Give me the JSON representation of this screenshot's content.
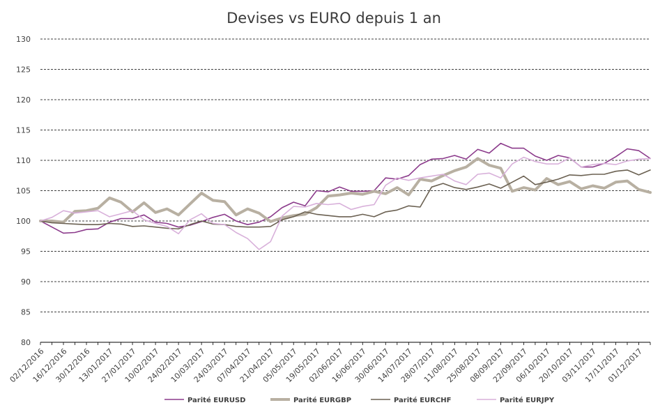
{
  "chart_data": {
    "type": "line",
    "title": "Devises vs EURO depuis 1 an",
    "ylim": [
      80,
      130
    ],
    "yticks": [
      80,
      85,
      90,
      95,
      100,
      105,
      110,
      115,
      120,
      125,
      130
    ],
    "grid": true,
    "legend_position": "bottom",
    "xtick_labels": [
      "02/12/2016",
      "16/12/2016",
      "30/12/2016",
      "13/01/2017",
      "27/01/2017",
      "10/02/2017",
      "24/02/2017",
      "10/03/2017",
      "24/03/2017",
      "07/04/2017",
      "21/04/2017",
      "05/05/2017",
      "19/05/2017",
      "02/06/2017",
      "16/06/2017",
      "30/06/2017",
      "14/07/2017",
      "28/07/2017",
      "11/08/2017",
      "25/08/2017",
      "08/09/2017",
      "22/09/2017",
      "06/10/2017",
      "20/10/2017",
      "03/11/2017",
      "17/11/2017",
      "01/12/2017"
    ],
    "x": [
      "02/12/2016",
      "09/12/2016",
      "16/12/2016",
      "23/12/2016",
      "30/12/2016",
      "06/01/2017",
      "13/01/2017",
      "20/01/2017",
      "27/01/2017",
      "03/02/2017",
      "10/02/2017",
      "17/02/2017",
      "24/02/2017",
      "03/03/2017",
      "10/03/2017",
      "17/03/2017",
      "24/03/2017",
      "31/03/2017",
      "07/04/2017",
      "14/04/2017",
      "21/04/2017",
      "28/04/2017",
      "05/05/2017",
      "12/05/2017",
      "19/05/2017",
      "26/05/2017",
      "02/06/2017",
      "09/06/2017",
      "16/06/2017",
      "23/06/2017",
      "30/06/2017",
      "07/07/2017",
      "14/07/2017",
      "21/07/2017",
      "28/07/2017",
      "04/08/2017",
      "11/08/2017",
      "18/08/2017",
      "25/08/2017",
      "01/09/2017",
      "08/09/2017",
      "15/09/2017",
      "22/09/2017",
      "29/09/2017",
      "06/10/2017",
      "13/10/2017",
      "20/10/2017",
      "27/10/2017",
      "03/11/2017",
      "10/11/2017",
      "17/11/2017",
      "24/11/2017",
      "01/12/2017",
      "08/12/2017"
    ],
    "series": [
      {
        "name": "Parité EURUSD",
        "color": "#8b3a8b",
        "width": 1.6,
        "values": [
          100.0,
          99.0,
          98.0,
          98.1,
          98.6,
          98.7,
          99.8,
          100.4,
          100.4,
          101.0,
          99.8,
          99.6,
          99.0,
          99.3,
          99.9,
          100.6,
          101.1,
          100.0,
          99.4,
          99.8,
          100.7,
          102.2,
          103.1,
          102.5,
          105.0,
          104.8,
          105.6,
          104.9,
          104.9,
          105.0,
          107.1,
          106.9,
          107.5,
          109.3,
          110.2,
          110.3,
          110.8,
          110.2,
          111.8,
          111.2,
          112.8,
          112.0,
          112.0,
          110.7,
          110.0,
          110.8,
          110.4,
          108.9,
          108.9,
          109.5,
          110.6,
          111.9,
          111.6,
          110.3
        ]
      },
      {
        "name": "Parité EURGBP",
        "color": "#b8b0a2",
        "width": 4,
        "values": [
          100.0,
          100.0,
          99.8,
          101.6,
          101.7,
          102.1,
          103.8,
          103.1,
          101.5,
          103.0,
          101.4,
          102.0,
          101.0,
          102.8,
          104.6,
          103.4,
          103.2,
          101.0,
          102.0,
          101.3,
          99.9,
          100.5,
          100.9,
          101.1,
          102.2,
          104.1,
          104.3,
          104.6,
          104.4,
          104.9,
          104.5,
          105.5,
          104.3,
          106.9,
          106.6,
          107.5,
          108.3,
          108.9,
          110.3,
          109.2,
          108.7,
          104.9,
          105.5,
          105.1,
          107.0,
          106.0,
          106.5,
          105.3,
          105.8,
          105.4,
          106.4,
          106.6,
          105.2,
          104.7
        ]
      },
      {
        "name": "Parité EURCHF",
        "color": "#6b6152",
        "width": 1.6,
        "values": [
          100.0,
          99.7,
          99.6,
          99.5,
          99.4,
          99.4,
          99.6,
          99.5,
          99.1,
          99.2,
          99.0,
          98.8,
          98.7,
          99.4,
          100.0,
          99.5,
          99.4,
          99.1,
          99.0,
          99.0,
          99.1,
          100.2,
          100.7,
          101.5,
          101.1,
          100.9,
          100.7,
          100.7,
          101.1,
          100.7,
          101.5,
          101.8,
          102.5,
          102.3,
          105.6,
          106.2,
          105.5,
          105.2,
          105.6,
          106.1,
          105.4,
          106.4,
          107.4,
          106.0,
          106.4,
          106.9,
          107.6,
          107.5,
          107.7,
          107.7,
          108.2,
          108.4,
          107.6,
          108.4
        ]
      },
      {
        "name": "Parité EURJPY",
        "color": "#d8b0da",
        "width": 1.6,
        "values": [
          100.0,
          100.6,
          101.7,
          101.3,
          101.5,
          101.7,
          100.7,
          101.2,
          101.7,
          100.2,
          99.6,
          99.1,
          97.9,
          100.2,
          101.2,
          99.6,
          99.4,
          98.1,
          97.1,
          95.3,
          96.6,
          100.8,
          102.4,
          102.3,
          102.9,
          102.7,
          102.9,
          101.9,
          102.4,
          102.7,
          105.9,
          107.1,
          106.7,
          107.1,
          107.4,
          107.7,
          106.6,
          106.0,
          107.7,
          107.9,
          107.1,
          109.4,
          110.5,
          109.8,
          109.4,
          109.4,
          110.4,
          108.9,
          109.3,
          109.5,
          109.3,
          109.9,
          110.2,
          110.3
        ]
      }
    ]
  }
}
